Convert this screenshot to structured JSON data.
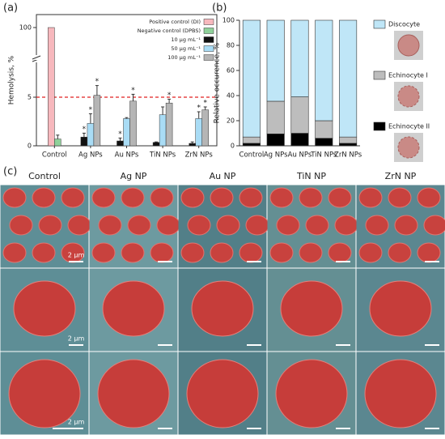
{
  "chart_data": [
    {
      "type": "grouped_bar",
      "panel_label": "(a)",
      "ylabel": "Hemolysis, %",
      "categories": [
        "Control",
        "Ag NPs",
        "Au NPs",
        "TiN NPs",
        "ZrN NPs"
      ],
      "series": [
        {
          "name": "Positive control (DI)",
          "color": "#f7b8bd",
          "values": [
            100,
            null,
            null,
            null,
            null
          ],
          "errors": [
            null,
            null,
            null,
            null,
            null
          ],
          "significance": [
            null,
            null,
            null,
            null,
            null
          ]
        },
        {
          "name": "Negative control (DPBS)",
          "color": "#8fd19a",
          "values": [
            0.7,
            null,
            null,
            null,
            null
          ],
          "errors": [
            0.4,
            null,
            null,
            null,
            null
          ],
          "significance": [
            null,
            null,
            null,
            null,
            null
          ]
        },
        {
          "name": "10 µg mL⁻¹",
          "color": "#111111",
          "values": [
            null,
            0.9,
            0.5,
            0.35,
            0.25
          ],
          "errors": [
            null,
            0.4,
            0.3,
            0.05,
            0.15
          ],
          "significance": [
            null,
            "*",
            "*",
            null,
            null
          ]
        },
        {
          "name": "50 µg mL⁻¹",
          "color": "#a9dcf5",
          "values": [
            null,
            2.3,
            2.8,
            3.2,
            2.8
          ],
          "errors": [
            null,
            1.0,
            0.1,
            0.8,
            0.7
          ],
          "significance": [
            null,
            "*",
            null,
            null,
            "*"
          ]
        },
        {
          "name": "100 µg mL⁻¹",
          "color": "#b5b5b5",
          "values": [
            null,
            5.2,
            4.6,
            4.4,
            3.7
          ],
          "errors": [
            null,
            1.0,
            0.7,
            0.4,
            0.3
          ],
          "significance": [
            null,
            "*",
            "*",
            "*",
            "*"
          ]
        }
      ],
      "ylim": [
        0,
        102
      ],
      "axis_break": [
        7.5,
        97
      ],
      "yticks": [
        0,
        5,
        100
      ],
      "reference_line": 5,
      "reference_color": "#e02020",
      "legend": "upper right"
    },
    {
      "type": "stacked_bar",
      "panel_label": "(b)",
      "ylabel": "Relative occurence, %",
      "categories": [
        "Control",
        "Ag NPs",
        "Au NPs",
        "TiN NPs",
        "ZrN NPs"
      ],
      "series": [
        {
          "name": "Echinocyte II",
          "color": "#000000",
          "values": [
            2,
            9.5,
            10,
            6,
            2
          ]
        },
        {
          "name": "Echinocyte I",
          "color": "#bdbdbd",
          "values": [
            5,
            26,
            29,
            14,
            5
          ]
        },
        {
          "name": "Discocyte",
          "color": "#bfe6f7",
          "values": [
            93,
            64.5,
            61,
            80,
            93
          ]
        }
      ],
      "ylim": [
        0,
        100
      ],
      "yticks": [
        0,
        20,
        40,
        60,
        80,
        100
      ],
      "legend": "right"
    }
  ],
  "images": {
    "panel_label": "(c)",
    "columns": [
      "Control",
      "Ag NP",
      "Au NP",
      "TiN NP",
      "ZrN NP"
    ],
    "scale_labels": [
      "2 µm",
      "2 µm",
      "2 µm"
    ]
  }
}
